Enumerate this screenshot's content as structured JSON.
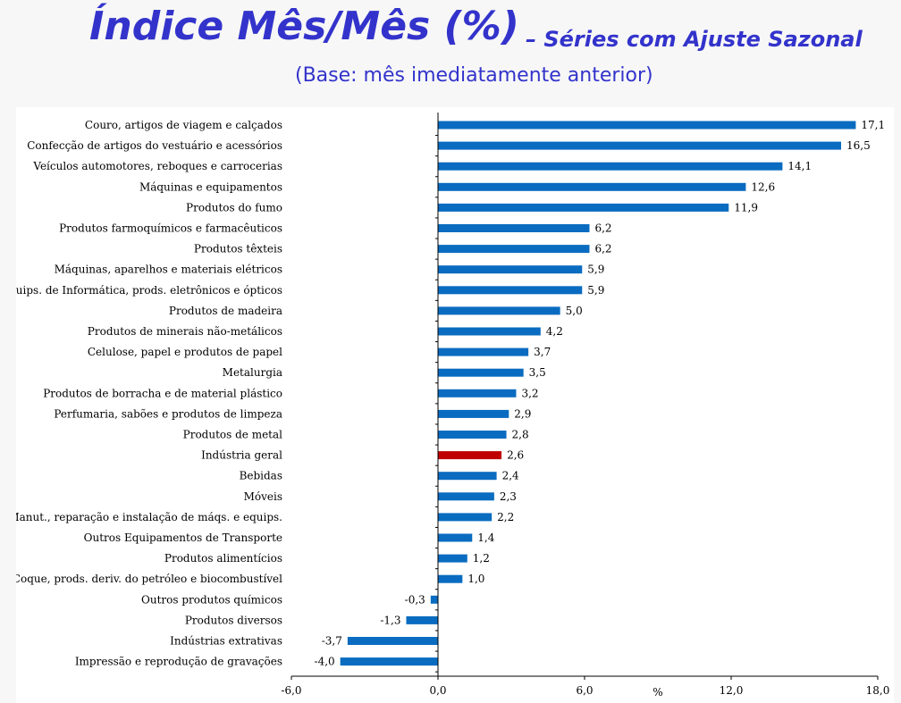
{
  "header": {
    "title": "Índice Mês/Mês (%)",
    "title_suffix": "– Séries com Ajuste Sazonal",
    "subtitle": "(Base: mês imediatamente anterior)"
  },
  "colors": {
    "title": "#3333cc",
    "bar": "#0a6cc0",
    "highlight_bar": "#c00000"
  },
  "chart_data": {
    "type": "bar",
    "orientation": "horizontal",
    "xlabel": "%",
    "xlim": [
      -6.0,
      18.0
    ],
    "x_ticks": [
      "-6,0",
      "0,0",
      "6,0",
      "12,0",
      "18,0"
    ],
    "grid": false,
    "highlight_category": "Indústria geral",
    "categories": [
      "Couro, artigos de viagem e calçados",
      "Confecção de artigos do vestuário e acessórios",
      "Veículos automotores, reboques e carrocerias",
      "Máquinas e equipamentos",
      "Produtos do fumo",
      "Produtos farmoquímicos e farmacêuticos",
      "Produtos têxteis",
      "Máquinas, aparelhos e materiais elétricos",
      "Equips. de Informática, prods. eletrônicos e ópticos",
      "Produtos de madeira",
      "Produtos de minerais não-metálicos",
      "Celulose, papel e produtos de papel",
      "Metalurgia",
      "Produtos de borracha e de material plástico",
      "Perfumaria, sabões e produtos de limpeza",
      "Produtos de metal",
      "Indústria geral",
      "Bebidas",
      "Móveis",
      "Manut., reparação e instalação de máqs. e equips.",
      "Outros Equipamentos de Transporte",
      "Produtos alimentícios",
      "Coque, prods. deriv. do petróleo e biocombustível",
      "Outros produtos químicos",
      "Produtos diversos",
      "Indústrias extrativas",
      "Impressão e reprodução de gravações"
    ],
    "values": [
      17.1,
      16.5,
      14.1,
      12.6,
      11.9,
      6.2,
      6.2,
      5.9,
      5.9,
      5.0,
      4.2,
      3.7,
      3.5,
      3.2,
      2.9,
      2.8,
      2.6,
      2.4,
      2.3,
      2.2,
      1.4,
      1.2,
      1.0,
      -0.3,
      -1.3,
      -3.7,
      -4.0
    ],
    "value_labels": [
      "17,1",
      "16,5",
      "14,1",
      "12,6",
      "11,9",
      "6,2",
      "6,2",
      "5,9",
      "5,9",
      "5,0",
      "4,2",
      "3,7",
      "3,5",
      "3,2",
      "2,9",
      "2,8",
      "2,6",
      "2,4",
      "2,3",
      "2,2",
      "1,4",
      "1,2",
      "1,0",
      "-0,3",
      "-1,3",
      "-3,7",
      "-4,0"
    ]
  }
}
